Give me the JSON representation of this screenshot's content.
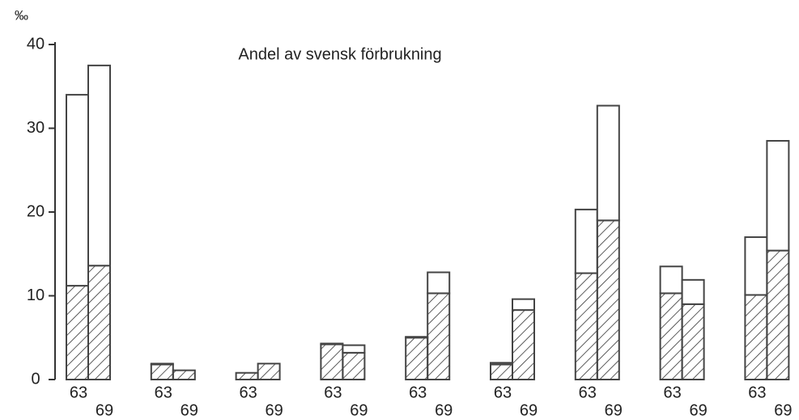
{
  "chart_data": {
    "type": "stacked_bar",
    "title": "Andel av svensk förbrukning",
    "y_label": "‰",
    "categories": [
      "63",
      "69",
      "63",
      "69",
      "63",
      "69",
      "63",
      "69",
      "63",
      "69",
      "63",
      "69",
      "63",
      "69",
      "63",
      "69",
      "63",
      "69"
    ],
    "series": [
      {
        "color": "#444444",
        "hatch": true,
        "values": [
          11.2,
          13.6,
          1.8,
          1.1,
          0.8,
          1.9,
          4.2,
          3.2,
          5.0,
          10.3,
          1.8,
          8.3,
          12.7,
          19.0,
          10.3,
          9.0,
          10.1,
          15.4
        ]
      },
      {
        "color": "#444444",
        "hatch": false,
        "values": [
          22.8,
          23.9,
          0.1,
          0,
          0,
          0,
          0.1,
          0.9,
          0.1,
          2.5,
          0.2,
          1.3,
          7.6,
          13.7,
          3.2,
          2.9,
          6.9,
          13.1
        ]
      }
    ],
    "ylim": [
      0,
      40
    ],
    "yticks": [
      0,
      10,
      20,
      30,
      40
    ]
  }
}
